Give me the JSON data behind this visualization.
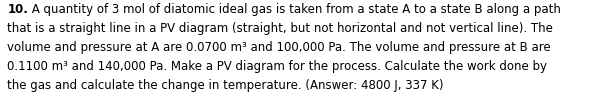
{
  "bold_prefix": "10.",
  "line1": " A quantity of 3 mol of diatomic ideal gas is taken from a state A to a state B along a path",
  "line2": "that is a straight line in a PV diagram (straight, but not horizontal and not vertical line). The",
  "line3": "volume and pressure at A are 0.0700 m³ and 100,000 Pa. The volume and pressure at B are",
  "line4": "0.1100 m³ and 140,000 Pa. Make a PV diagram for the process. Calculate the work done by",
  "line5": "the gas and calculate the change in temperature. (Answer: 4800 J, 337 K)",
  "background_color": "#ffffff",
  "font_size": 8.5,
  "text_color": "#000000",
  "fig_width": 6.05,
  "fig_height": 0.98
}
